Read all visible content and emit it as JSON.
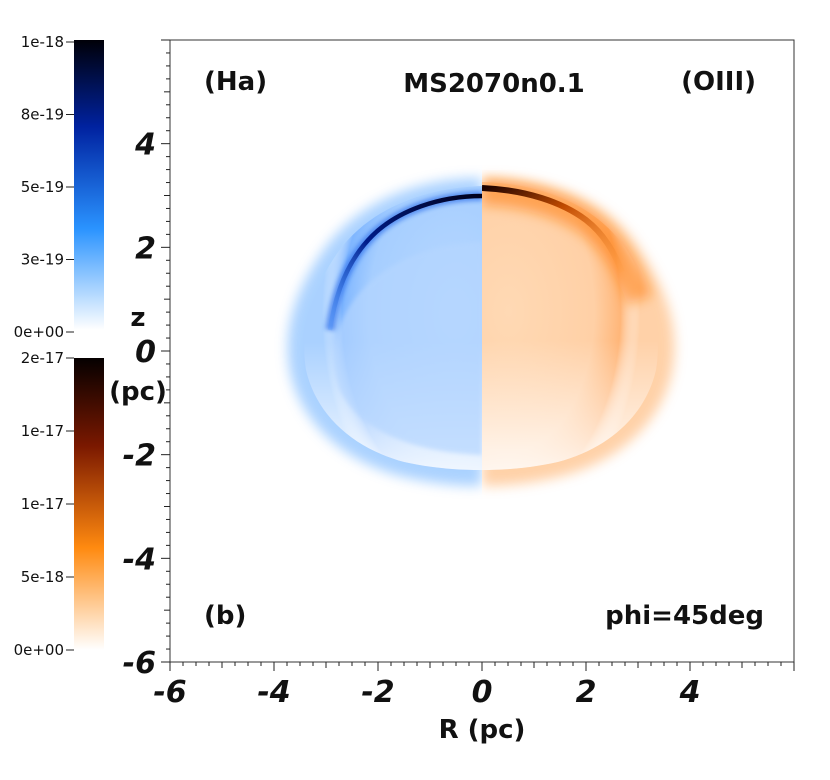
{
  "chart_data": {
    "type": "heatmap",
    "title": "MS2070n0.1",
    "xlabel": "R (pc)",
    "ylabel_line1": "z",
    "ylabel_line2": "(pc)",
    "xlim": [
      -6,
      6
    ],
    "ylim": [
      -6,
      6
    ],
    "x_ticks": [
      -6,
      -4,
      -2,
      0,
      2,
      4
    ],
    "y_ticks": [
      -6,
      -4,
      -2,
      0,
      2,
      4
    ],
    "annotations": {
      "left_top": "(Ha)",
      "right_top": "(OIII)",
      "bottom_left": "(b)",
      "bottom_right": "phi=45deg"
    },
    "series": [
      {
        "name": "Ha",
        "side": "left",
        "colormap": [
          "#ffffff",
          "#1e8fff",
          "#00107a",
          "#000000"
        ],
        "colorbar_ticks": [
          "0e+00",
          "3e-19",
          "5e-19",
          "8e-19",
          "1e-18"
        ],
        "colorbar_range": [
          0,
          1e-18
        ]
      },
      {
        "name": "OIII",
        "side": "right",
        "colormap": [
          "#ffffff",
          "#ff8a10",
          "#7a1800",
          "#000000"
        ],
        "colorbar_ticks": [
          "0e+00",
          "5e-18",
          "1e-17",
          "1e-17",
          "2e-17"
        ],
        "colorbar_range": [
          0,
          2e-17
        ]
      }
    ],
    "emission_shape": {
      "cap_top_z": 3.3,
      "cap_peak_z": 3.0,
      "bottom_z": -2.5,
      "max_radius_R": 3.8,
      "widest_z": 0.0
    }
  }
}
